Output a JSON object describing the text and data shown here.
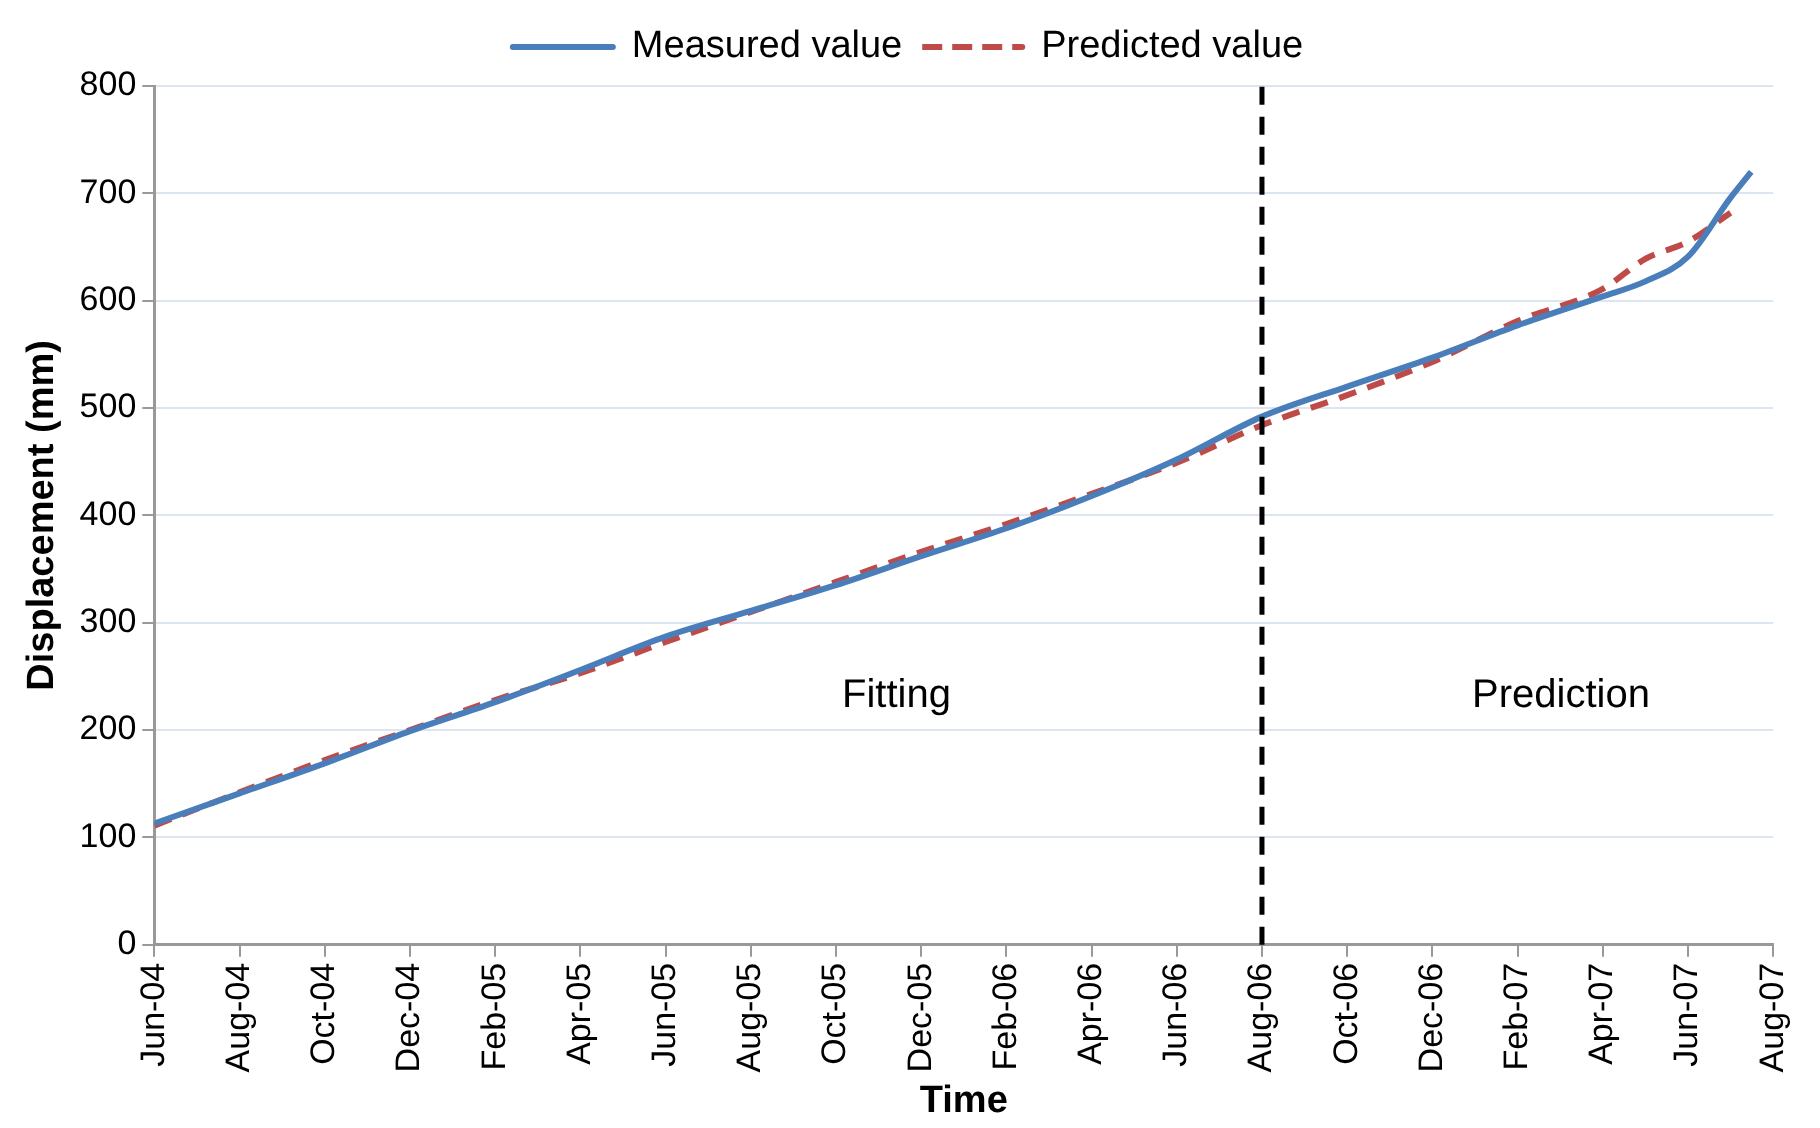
{
  "chart_data": {
    "type": "line",
    "xlabel": "Time",
    "ylabel": "Displacement (mm)",
    "series": [
      {
        "name": "Measured value",
        "color": "#4a7ebb",
        "line_style": "solid",
        "x": [
          "2004-06",
          "2004-08",
          "2004-10",
          "2004-12",
          "2005-02",
          "2005-04",
          "2005-06",
          "2005-08",
          "2005-10",
          "2005-12",
          "2006-02",
          "2006-04",
          "2006-06",
          "2006-08",
          "2006-10",
          "2006-12",
          "2007-02",
          "2007-04",
          "2007-05",
          "2007-06",
          "2007-07",
          "2007-07-16"
        ],
        "values": [
          113,
          141,
          169,
          199,
          226,
          256,
          287,
          311,
          335,
          362,
          388,
          418,
          452,
          492,
          520,
          547,
          577,
          604,
          618,
          641,
          696,
          720
        ]
      },
      {
        "name": "Predicted value",
        "color": "#be4b48",
        "line_style": "dashed",
        "x": [
          "2004-06",
          "2004-08",
          "2004-10",
          "2004-12",
          "2005-02",
          "2005-04",
          "2005-06",
          "2005-08",
          "2005-10",
          "2005-12",
          "2006-02",
          "2006-04",
          "2006-06",
          "2006-08",
          "2006-10",
          "2006-12",
          "2007-02",
          "2007-04",
          "2007-05",
          "2007-06",
          "2007-07"
        ],
        "values": [
          111,
          142,
          172,
          200,
          228,
          253,
          282,
          310,
          338,
          366,
          392,
          420,
          449,
          484,
          512,
          543,
          581,
          611,
          639,
          655,
          682
        ]
      }
    ],
    "xlim": [
      "2004-06",
      "2007-08"
    ],
    "xticks": [
      {
        "value": "2004-06",
        "label": "Jun-04"
      },
      {
        "value": "2004-08",
        "label": "Aug-04"
      },
      {
        "value": "2004-10",
        "label": "Oct-04"
      },
      {
        "value": "2004-12",
        "label": "Dec-04"
      },
      {
        "value": "2005-02",
        "label": "Feb-05"
      },
      {
        "value": "2005-04",
        "label": "Apr-05"
      },
      {
        "value": "2005-06",
        "label": "Jun-05"
      },
      {
        "value": "2005-08",
        "label": "Aug-05"
      },
      {
        "value": "2005-10",
        "label": "Oct-05"
      },
      {
        "value": "2005-12",
        "label": "Dec-05"
      },
      {
        "value": "2006-02",
        "label": "Feb-06"
      },
      {
        "value": "2006-04",
        "label": "Apr-06"
      },
      {
        "value": "2006-06",
        "label": "Jun-06"
      },
      {
        "value": "2006-08",
        "label": "Aug-06"
      },
      {
        "value": "2006-10",
        "label": "Oct-06"
      },
      {
        "value": "2006-12",
        "label": "Dec-06"
      },
      {
        "value": "2007-02",
        "label": "Feb-07"
      },
      {
        "value": "2007-04",
        "label": "Apr-07"
      },
      {
        "value": "2007-06",
        "label": "Jun-07"
      },
      {
        "value": "2007-08",
        "label": "Aug-07"
      }
    ],
    "ylim": [
      0,
      800
    ],
    "yticks": [
      0,
      100,
      200,
      300,
      400,
      500,
      600,
      700,
      800
    ],
    "ref_lines": [
      {
        "axis": "x",
        "value": "2006-08",
        "color": "#000000",
        "line_style": "dashed"
      }
    ],
    "annotations": [
      "Fitting",
      "Prediction"
    ],
    "grid": "y",
    "legend": "top",
    "marker": "none"
  }
}
